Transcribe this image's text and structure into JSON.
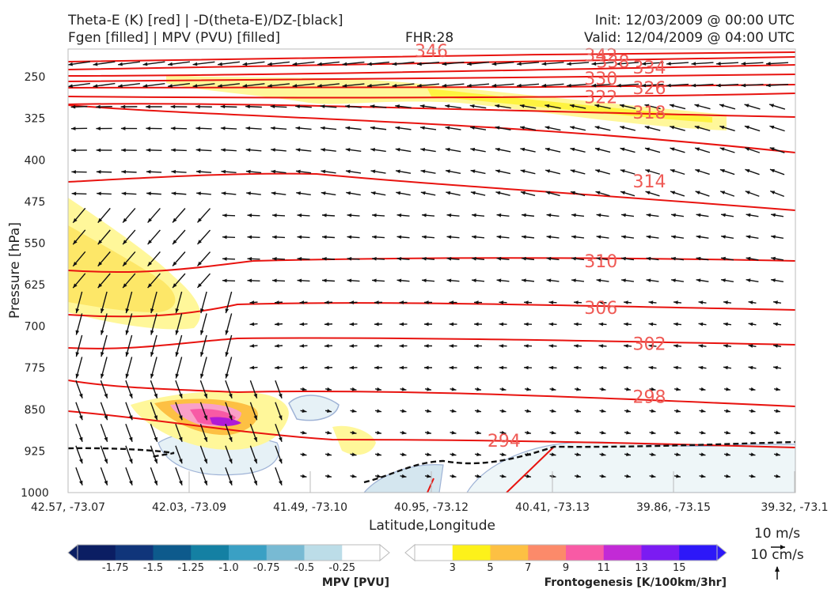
{
  "header": {
    "line1_left": "Theta-E (K) [red] | -D(theta-E)/DZ-[black]",
    "line2_left": "Fgen [filled] | MPV (PVU) [filled]",
    "fhr": "FHR:28",
    "init": "Init: 12/03/2009 @ 00:00 UTC",
    "valid": "Valid: 12/04/2009 @ 04:00 UTC"
  },
  "chart_data": {
    "type": "cross-section",
    "xlabel": "Latitude,Longitude",
    "ylabel": "Pressure [hPa]",
    "ylim": [
      1000,
      200
    ],
    "y_ticks": [
      250,
      325,
      400,
      475,
      550,
      625,
      700,
      775,
      850,
      925,
      1000
    ],
    "x_ticks": [
      "42.57, -73.07",
      "42.03, -73.09",
      "41.49, -73.10",
      "40.95, -73.12",
      "40.41, -73.13",
      "39.86, -73.15",
      "39.32, -73.1"
    ],
    "theta_e_labels": [
      {
        "value": "346",
        "x_index": 3.0,
        "p": 203
      },
      {
        "value": "342",
        "x_index": 4.4,
        "p": 211
      },
      {
        "value": "338",
        "x_index": 4.5,
        "p": 222
      },
      {
        "value": "334",
        "x_index": 4.8,
        "p": 233
      },
      {
        "value": "330",
        "x_index": 4.4,
        "p": 253
      },
      {
        "value": "326",
        "x_index": 4.8,
        "p": 270
      },
      {
        "value": "322",
        "x_index": 4.4,
        "p": 286
      },
      {
        "value": "318",
        "x_index": 4.8,
        "p": 314
      },
      {
        "value": "314",
        "x_index": 4.8,
        "p": 438
      },
      {
        "value": "310",
        "x_index": 4.4,
        "p": 582
      },
      {
        "value": "306",
        "x_index": 4.4,
        "p": 666
      },
      {
        "value": "302",
        "x_index": 4.8,
        "p": 731
      },
      {
        "value": "298",
        "x_index": 4.8,
        "p": 827
      },
      {
        "value": "294",
        "x_index": 3.6,
        "p": 906
      }
    ],
    "colorbar_mpv": {
      "label": "MPV [PVU]",
      "ticks": [
        "-1.75",
        "-1.5",
        "-1.25",
        "-1.0",
        "-0.75",
        "-0.5",
        "-0.25"
      ],
      "colors": [
        "#0b1e63",
        "#10357a",
        "#0d5a8c",
        "#1480a3",
        "#3aa0c4",
        "#78bad3",
        "#bcdde8",
        "#ffffff"
      ]
    },
    "colorbar_fgen": {
      "label": "Frontogenesis [K/100km/3hr]",
      "ticks": [
        "3",
        "5",
        "7",
        "9",
        "11",
        "13",
        "15"
      ],
      "colors": [
        "#ffffff",
        "#fdf11a",
        "#fdc043",
        "#fc8a6a",
        "#f85aa5",
        "#c22ad6",
        "#7b1bf2",
        "#2d18f8"
      ]
    },
    "wind_key": {
      "h_label": "10 m/s",
      "v_label": "10 cm/s"
    }
  }
}
